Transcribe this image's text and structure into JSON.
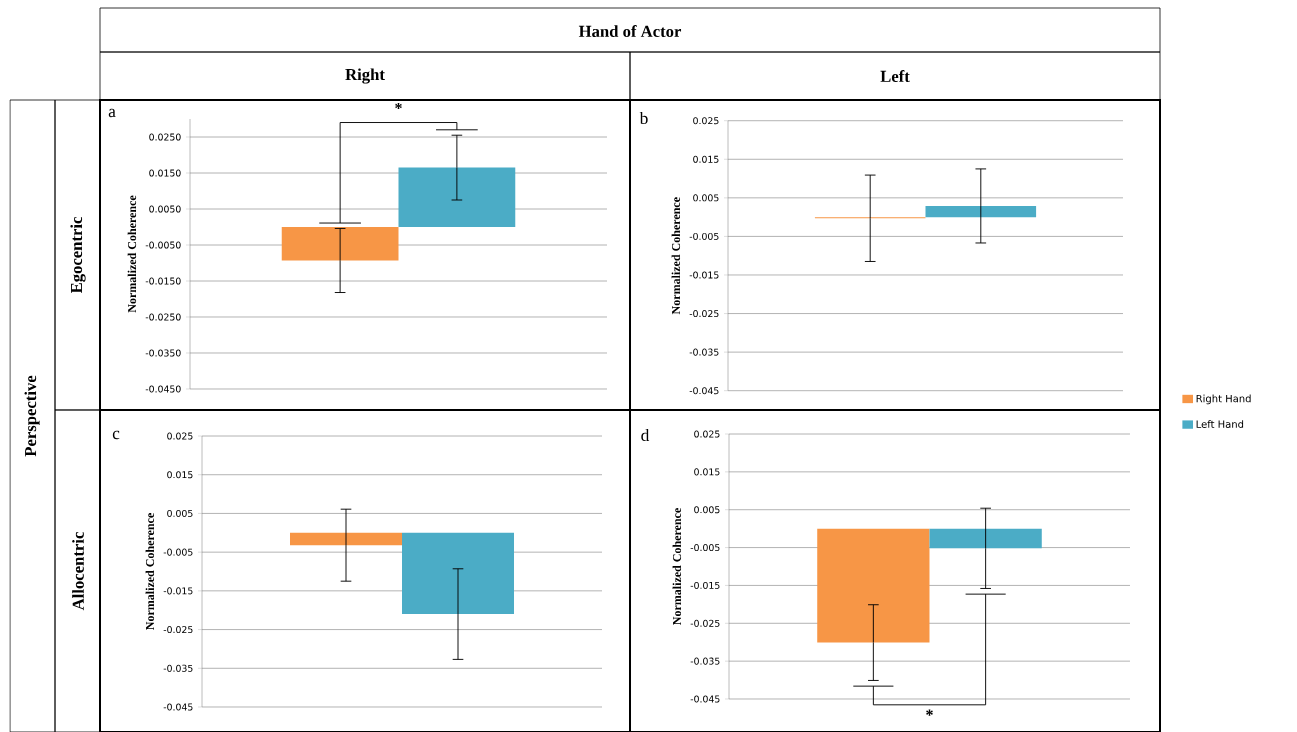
{
  "chart_data": [
    {
      "type": "bar",
      "title": "Right",
      "ylabel": "Normalized Coherence",
      "categories": [
        null
      ],
      "grid": "y",
      "annotations": [
        "a",
        "Hand of Actor",
        "Perspective",
        "Egocentric",
        "*"
      ],
      "ylim": [
        -0.045,
        0.03
      ],
      "yticks": [
        {
          "value": 0.025,
          "label": "0.0250"
        },
        {
          "value": 0.015,
          "label": "0.0150"
        },
        {
          "value": 0.005,
          "label": "0.0050"
        },
        {
          "value": -0.005,
          "label": "-0.0050"
        },
        {
          "value": -0.015,
          "label": "-0.0150"
        },
        {
          "value": -0.025,
          "label": "-0.0250"
        },
        {
          "value": -0.035,
          "label": "-0.0350"
        },
        {
          "value": -0.045,
          "label": "-0.0450"
        }
      ],
      "series": [
        {
          "color": "#f79646",
          "values": [
            -0.0093
          ],
          "errors": [
            0.0089
          ]
        },
        {
          "color": "#4bacc6",
          "values": [
            0.0165
          ],
          "errors": [
            0.009
          ]
        }
      ]
    },
    {
      "type": "bar",
      "title": "Left",
      "ylabel": "Normalized Coherence",
      "categories": [
        null
      ],
      "grid": "y",
      "annotations": [
        "b"
      ],
      "ylim": [
        -0.045,
        0.025
      ],
      "yticks": [
        0.025,
        0.015,
        0.005,
        -0.005,
        -0.015,
        -0.025,
        -0.035,
        -0.045
      ],
      "series": [
        {
          "color": "#f79646",
          "values": [
            -0.0003
          ],
          "errors": [
            0.0112
          ]
        },
        {
          "color": "#4bacc6",
          "values": [
            0.0029
          ],
          "errors": [
            0.0096
          ]
        }
      ]
    },
    {
      "type": "bar",
      "ylabel": "Normalized Coherence",
      "categories": [
        null
      ],
      "grid": "y",
      "annotations": [
        "c",
        "Allocentric"
      ],
      "ylim": [
        -0.045,
        0.025
      ],
      "yticks": [
        0.025,
        0.015,
        0.005,
        -0.005,
        -0.015,
        -0.025,
        -0.035,
        -0.045
      ],
      "series": [
        {
          "color": "#f79646",
          "values": [
            -0.0032
          ],
          "errors": [
            0.0093
          ]
        },
        {
          "color": "#4bacc6",
          "values": [
            -0.021
          ],
          "errors": [
            0.0117
          ]
        }
      ]
    },
    {
      "type": "bar",
      "ylabel": "Normalized Coherence",
      "categories": [
        null
      ],
      "grid": "y",
      "legend": "right",
      "annotations": [
        "d",
        "*"
      ],
      "ylim": [
        -0.045,
        0.025
      ],
      "yticks": [
        0.025,
        0.015,
        0.005,
        -0.005,
        -0.015,
        -0.025,
        -0.035,
        -0.045
      ],
      "series": [
        {
          "name": "Right Hand",
          "color": "#f79646",
          "values": [
            -0.0301
          ],
          "errors": [
            0.01
          ]
        },
        {
          "name": "Left Hand",
          "color": "#4bacc6",
          "values": [
            -0.0052
          ],
          "errors": [
            0.0106
          ]
        }
      ]
    }
  ]
}
